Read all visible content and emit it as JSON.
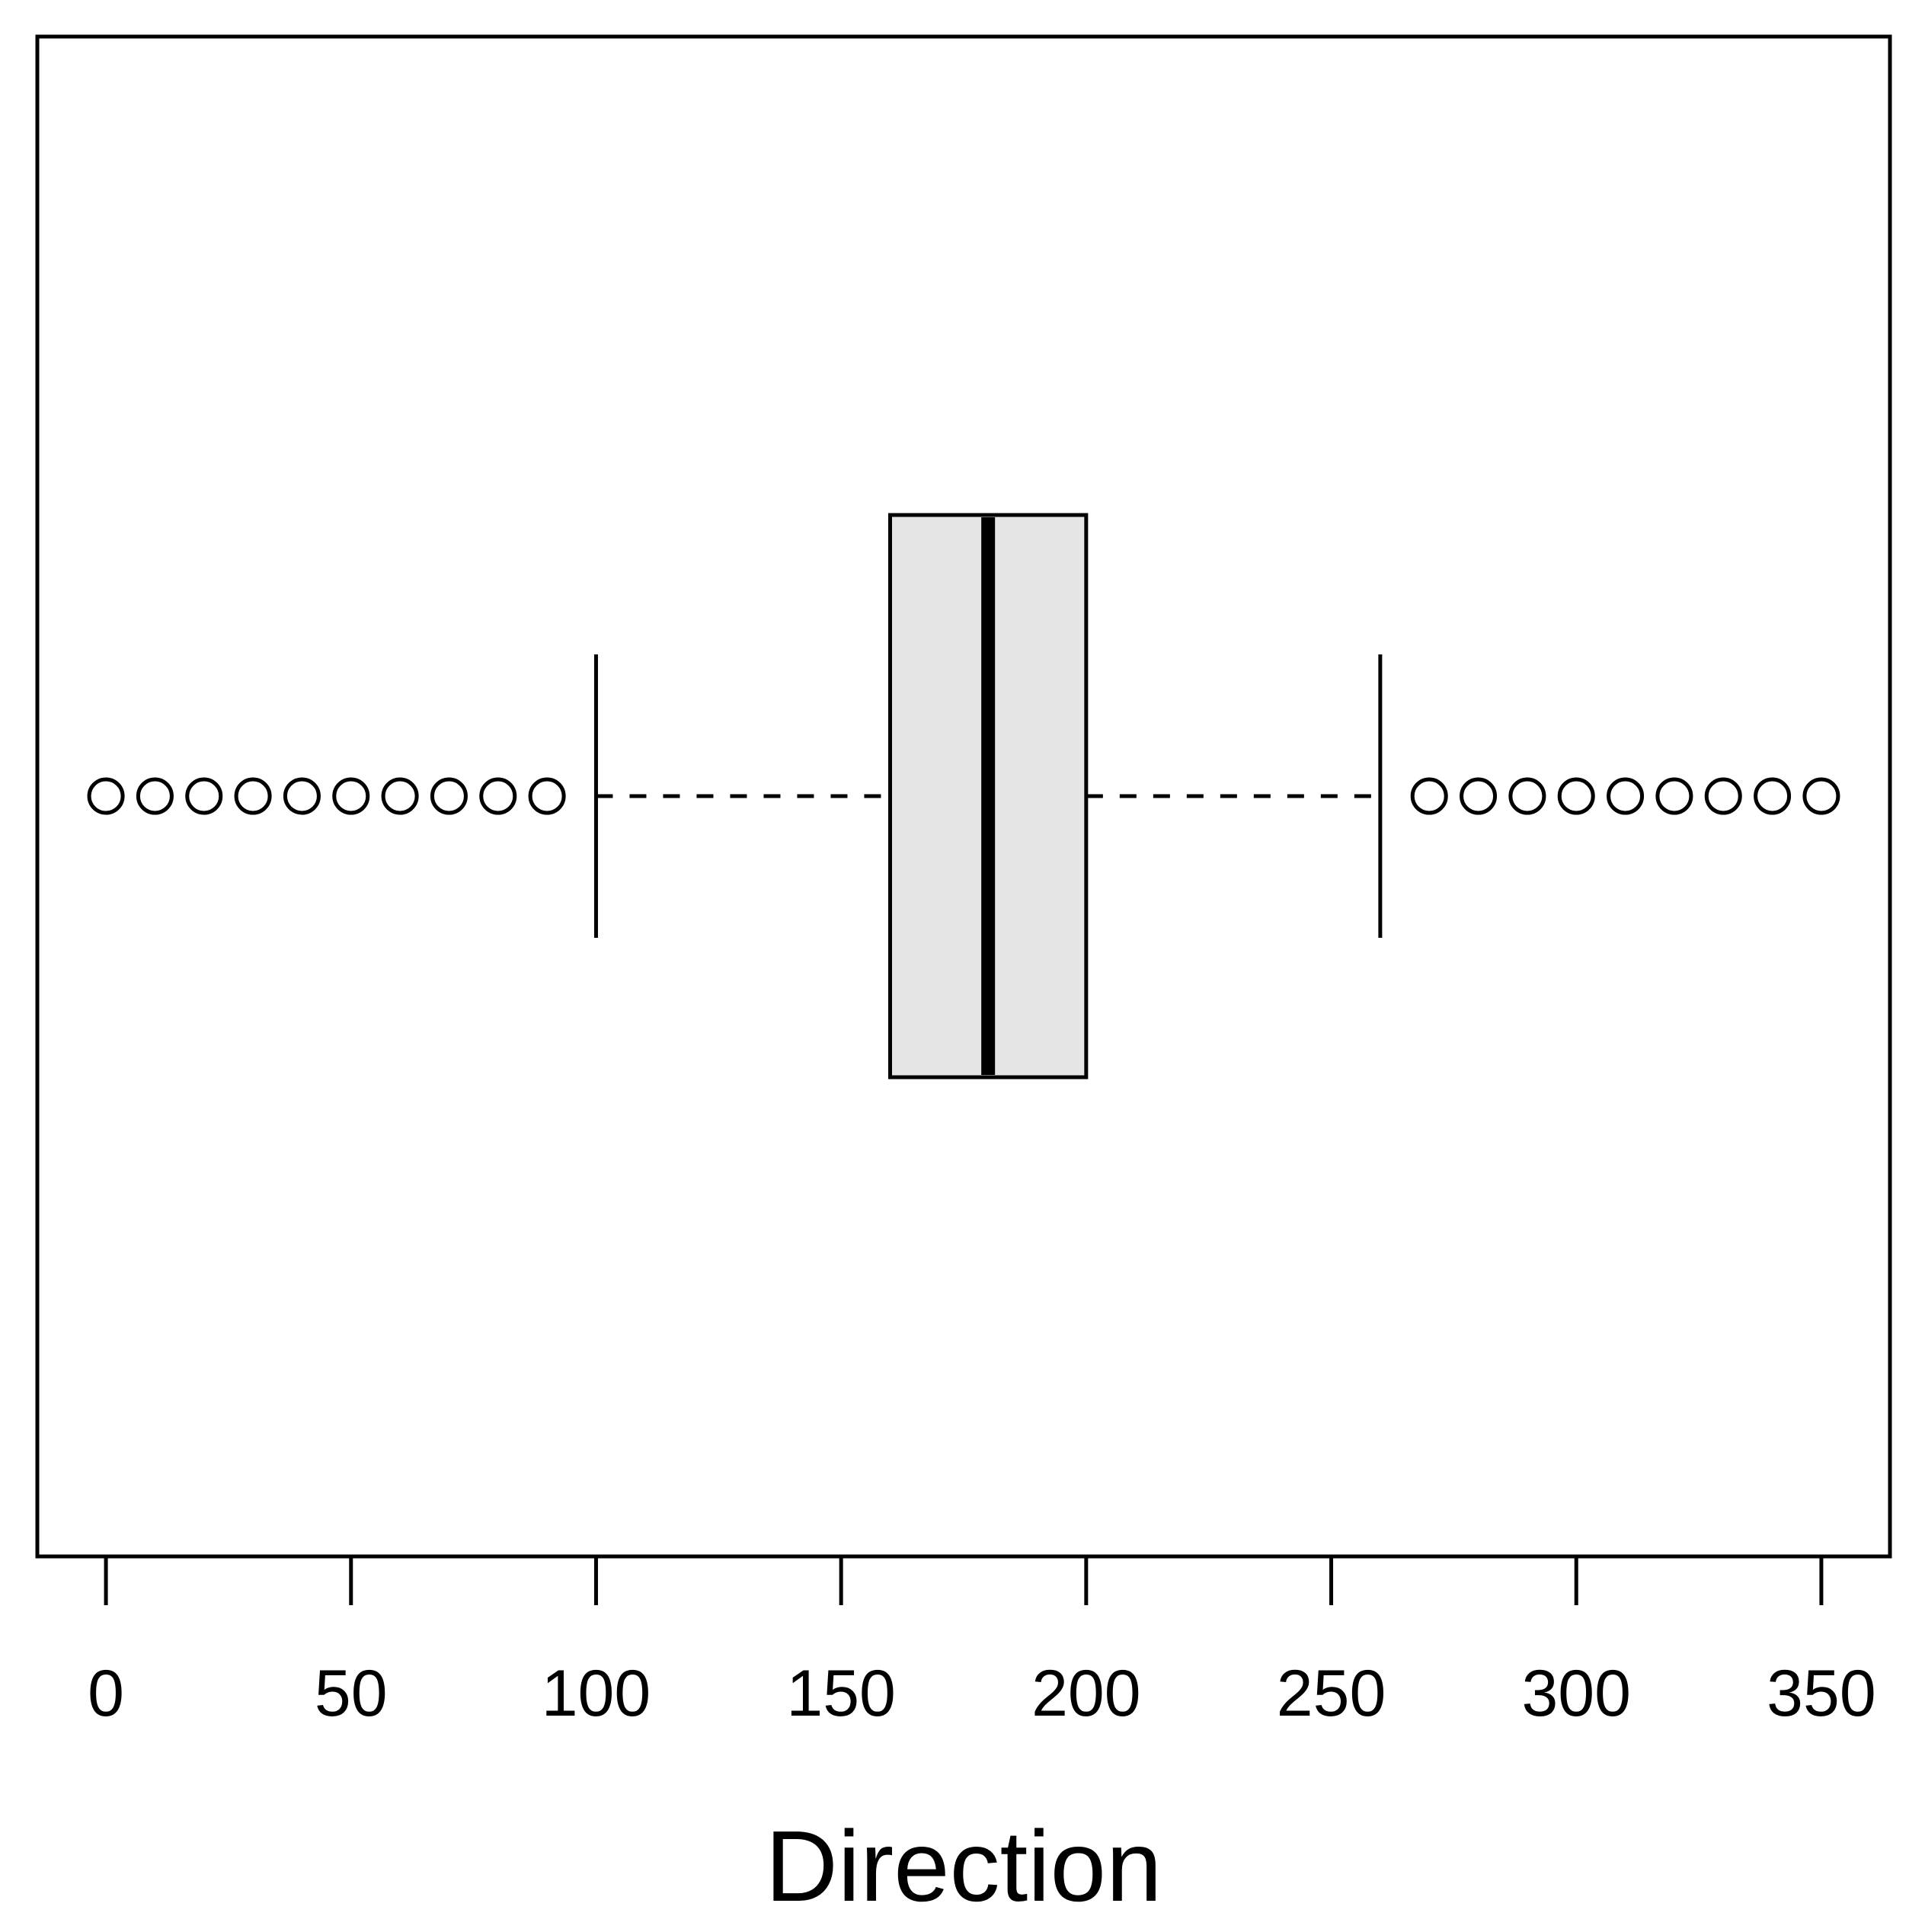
{
  "chart_data": {
    "type": "boxplot",
    "orientation": "horizontal",
    "title": "",
    "xlabel": "Direction",
    "ylabel": "",
    "xlim": [
      -14,
      364
    ],
    "xticks": [
      0,
      50,
      100,
      150,
      200,
      250,
      300,
      350
    ],
    "xtick_labels": [
      "0",
      "50",
      "100",
      "150",
      "200",
      "250",
      "300",
      "350"
    ],
    "grid": false,
    "legend": "none",
    "box": {
      "q1": 160,
      "median": 180,
      "q3": 200,
      "whisker_low": 100,
      "whisker_high": 260
    },
    "outliers": [
      0,
      10,
      20,
      30,
      40,
      50,
      60,
      70,
      80,
      90,
      270,
      280,
      290,
      300,
      310,
      320,
      330,
      340,
      350
    ],
    "colors": {
      "box_fill": "#e5e5e5",
      "stroke": "#000000",
      "background": "#ffffff"
    }
  }
}
